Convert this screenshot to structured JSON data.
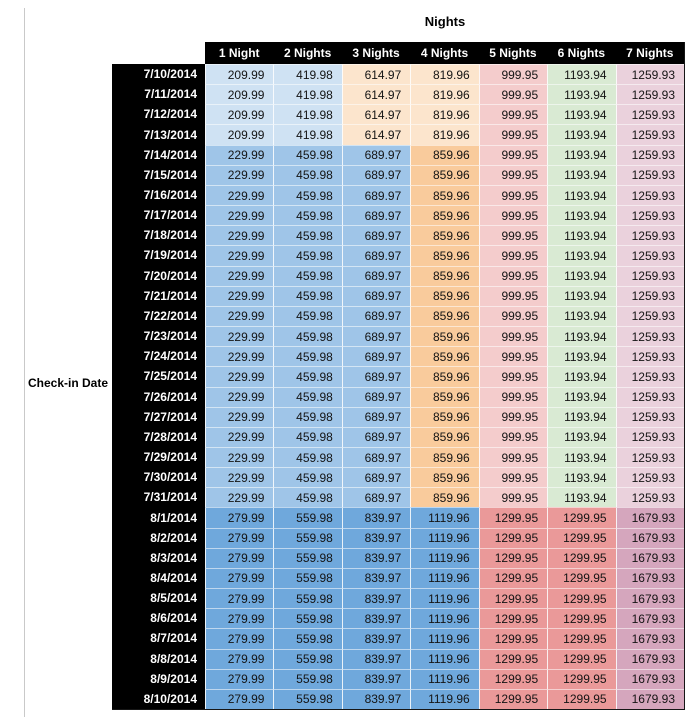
{
  "chart_data": {
    "type": "table",
    "title": "Nights",
    "row_header_label": "Check-in Date",
    "columns": [
      "1 Night",
      "2 Nights",
      "3 Nights",
      "4 Nights",
      "5 Nights",
      "6 Nights",
      "7 Nights"
    ],
    "header_bg": "#000000",
    "header_text_color": "#ffffff",
    "row_groups": [
      {
        "dates": [
          "7/10/2014",
          "7/11/2014",
          "7/12/2014",
          "7/13/2014"
        ],
        "values": [
          "209.99",
          "419.98",
          "614.97",
          "819.96",
          "999.95",
          "1193.94",
          "1259.93"
        ],
        "cell_colors": [
          "#CFE2F3",
          "#CFE2F3",
          "#FCE5CD",
          "#FCE5CD",
          "#F4CCCC",
          "#D9EAD3",
          "#EAD1DC"
        ]
      },
      {
        "dates": [
          "7/14/2014",
          "7/15/2014",
          "7/16/2014",
          "7/17/2014",
          "7/18/2014",
          "7/19/2014",
          "7/20/2014",
          "7/21/2014",
          "7/22/2014",
          "7/23/2014",
          "7/24/2014",
          "7/25/2014",
          "7/26/2014",
          "7/27/2014",
          "7/28/2014",
          "7/29/2014",
          "7/30/2014",
          "7/31/2014"
        ],
        "values": [
          "229.99",
          "459.98",
          "689.97",
          "859.96",
          "999.95",
          "1193.94",
          "1259.93"
        ],
        "cell_colors": [
          "#9FC5E8",
          "#9FC5E8",
          "#9FC5E8",
          "#F9CB9C",
          "#F4CCCC",
          "#D9EAD3",
          "#EAD1DC"
        ]
      },
      {
        "dates": [
          "8/1/2014",
          "8/2/2014",
          "8/3/2014",
          "8/4/2014",
          "8/5/2014",
          "8/6/2014",
          "8/7/2014",
          "8/8/2014",
          "8/9/2014",
          "8/10/2014"
        ],
        "values": [
          "279.99",
          "559.98",
          "839.97",
          "1119.96",
          "1299.95",
          "1299.95",
          "1679.93"
        ],
        "cell_colors": [
          "#6FA8DC",
          "#6FA8DC",
          "#6FA8DC",
          "#6FA8DC",
          "#EA9999",
          "#EA9999",
          "#D5A6BD"
        ]
      }
    ]
  }
}
